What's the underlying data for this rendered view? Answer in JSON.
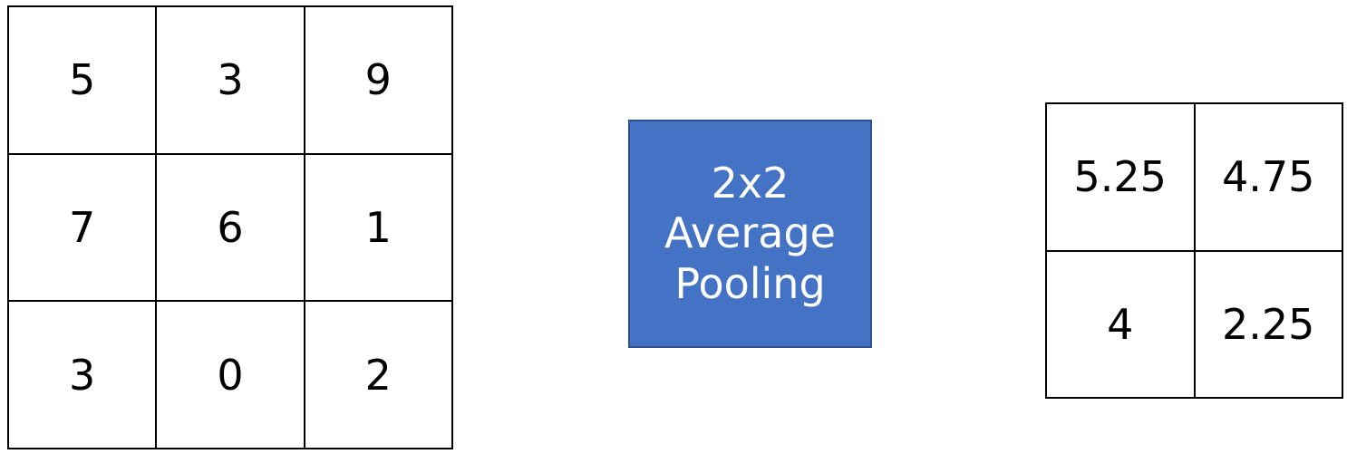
{
  "input_grid": {
    "rows": [
      [
        "5",
        "3",
        "9"
      ],
      [
        "7",
        "6",
        "1"
      ],
      [
        "3",
        "0",
        "2"
      ]
    ]
  },
  "operation": {
    "lines": [
      "2x2",
      "Average",
      "Pooling"
    ],
    "color": "#4472C4",
    "border_color": "#2F528F",
    "text_color": "#FFFFFF"
  },
  "output_grid": {
    "rows": [
      [
        "5.25",
        "4.75"
      ],
      [
        "4",
        "2.25"
      ]
    ]
  }
}
